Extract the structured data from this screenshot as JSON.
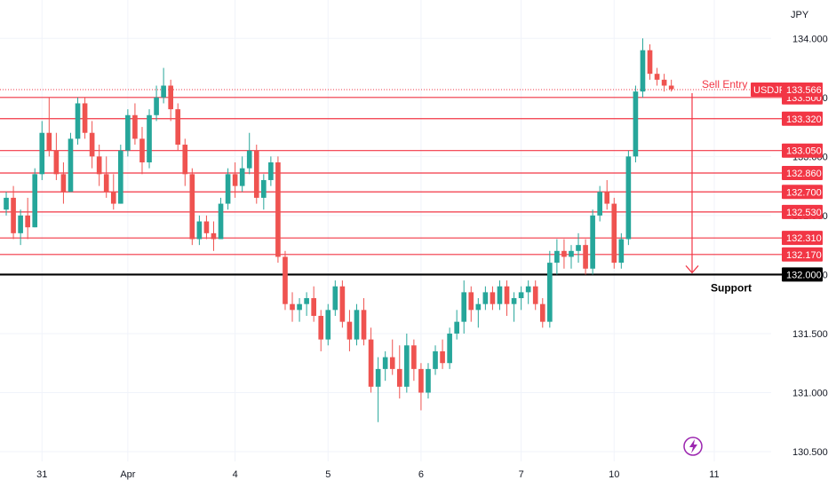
{
  "chart_data": {
    "type": "candlestick",
    "currency_label": "JPY",
    "symbol": "USDJPY",
    "current_price": "133.566",
    "y_range": [
      130.38,
      134.25
    ],
    "y_ticks": [
      "134.000",
      "133.500",
      "133.000",
      "132.500",
      "132.000",
      "131.500",
      "131.000",
      "130.500"
    ],
    "x_ticks": [
      {
        "label": "31",
        "bar": 5
      },
      {
        "label": "Apr",
        "bar": 17
      },
      {
        "label": "4",
        "bar": 32
      },
      {
        "label": "5",
        "bar": 45
      },
      {
        "label": "6",
        "bar": 58
      },
      {
        "label": "7",
        "bar": 72
      },
      {
        "label": "10",
        "bar": 85
      },
      {
        "label": "11",
        "bar": 99
      }
    ],
    "level_labels": [
      "133.500",
      "133.320",
      "133.050",
      "132.860",
      "132.700",
      "132.530",
      "132.310",
      "132.170"
    ],
    "levels": [
      133.5,
      133.32,
      133.05,
      132.86,
      132.7,
      132.53,
      132.31,
      132.17
    ],
    "support": {
      "label": "132.000",
      "value": 132.0,
      "text": "Support"
    },
    "sell_entry": {
      "text": "Sell Entry",
      "value": 133.566
    },
    "target": 132.0,
    "colors": {
      "up": "#26a69a",
      "down": "#ef5350",
      "level": "#f23645",
      "support": "#000000",
      "price_line": "#f23645",
      "text": "#131722"
    },
    "candles": [
      [
        132.55,
        132.7,
        132.5,
        132.65
      ],
      [
        132.65,
        132.75,
        132.3,
        132.35
      ],
      [
        132.35,
        132.55,
        132.25,
        132.5
      ],
      [
        132.5,
        132.65,
        132.3,
        132.4
      ],
      [
        132.4,
        132.9,
        132.4,
        132.85
      ],
      [
        132.85,
        133.3,
        132.8,
        133.2
      ],
      [
        133.2,
        133.5,
        133.0,
        133.05
      ],
      [
        133.05,
        133.2,
        132.8,
        132.85
      ],
      [
        132.85,
        132.95,
        132.6,
        132.7
      ],
      [
        132.7,
        133.2,
        132.7,
        133.15
      ],
      [
        133.15,
        133.5,
        133.1,
        133.45
      ],
      [
        133.45,
        133.5,
        133.15,
        133.2
      ],
      [
        133.2,
        133.3,
        132.9,
        133.0
      ],
      [
        133.0,
        133.1,
        132.75,
        132.85
      ],
      [
        132.85,
        133.0,
        132.65,
        132.7
      ],
      [
        132.7,
        132.85,
        132.55,
        132.6
      ],
      [
        132.6,
        133.1,
        132.6,
        133.05
      ],
      [
        133.05,
        133.4,
        133.0,
        133.35
      ],
      [
        133.35,
        133.45,
        133.1,
        133.15
      ],
      [
        133.15,
        133.25,
        132.85,
        132.95
      ],
      [
        132.95,
        133.4,
        132.9,
        133.35
      ],
      [
        133.35,
        133.6,
        133.3,
        133.5
      ],
      [
        133.5,
        133.75,
        133.45,
        133.6
      ],
      [
        133.6,
        133.65,
        133.3,
        133.4
      ],
      [
        133.4,
        133.45,
        133.05,
        133.1
      ],
      [
        133.1,
        133.15,
        132.75,
        132.85
      ],
      [
        132.85,
        132.9,
        132.25,
        132.3
      ],
      [
        132.3,
        132.5,
        132.25,
        132.45
      ],
      [
        132.45,
        132.5,
        132.3,
        132.35
      ],
      [
        132.35,
        132.45,
        132.2,
        132.3
      ],
      [
        132.3,
        132.65,
        132.3,
        132.6
      ],
      [
        132.6,
        132.9,
        132.55,
        132.85
      ],
      [
        132.85,
        132.95,
        132.65,
        132.75
      ],
      [
        132.75,
        133.0,
        132.7,
        132.9
      ],
      [
        132.9,
        133.2,
        132.85,
        133.05
      ],
      [
        133.05,
        133.1,
        132.6,
        132.65
      ],
      [
        132.65,
        132.85,
        132.55,
        132.8
      ],
      [
        132.8,
        133.0,
        132.75,
        132.95
      ],
      [
        132.95,
        133.0,
        132.1,
        132.15
      ],
      [
        132.15,
        132.2,
        131.7,
        131.75
      ],
      [
        131.75,
        131.85,
        131.6,
        131.7
      ],
      [
        131.7,
        131.8,
        131.6,
        131.75
      ],
      [
        131.75,
        131.85,
        131.65,
        131.8
      ],
      [
        131.8,
        131.9,
        131.6,
        131.65
      ],
      [
        131.65,
        131.7,
        131.35,
        131.45
      ],
      [
        131.45,
        131.75,
        131.4,
        131.7
      ],
      [
        131.7,
        131.95,
        131.65,
        131.9
      ],
      [
        131.9,
        131.95,
        131.55,
        131.6
      ],
      [
        131.6,
        131.7,
        131.35,
        131.45
      ],
      [
        131.45,
        131.75,
        131.4,
        131.7
      ],
      [
        131.7,
        131.8,
        131.4,
        131.45
      ],
      [
        131.45,
        131.55,
        131.0,
        131.05
      ],
      [
        131.05,
        131.3,
        130.75,
        131.2
      ],
      [
        131.2,
        131.35,
        131.1,
        131.3
      ],
      [
        131.3,
        131.45,
        131.15,
        131.2
      ],
      [
        131.2,
        131.4,
        130.95,
        131.05
      ],
      [
        131.05,
        131.5,
        131.0,
        131.4
      ],
      [
        131.4,
        131.45,
        131.1,
        131.2
      ],
      [
        131.2,
        131.25,
        130.85,
        131.0
      ],
      [
        131.0,
        131.25,
        130.95,
        131.2
      ],
      [
        131.2,
        131.4,
        131.15,
        131.35
      ],
      [
        131.35,
        131.45,
        131.2,
        131.25
      ],
      [
        131.25,
        131.55,
        131.2,
        131.5
      ],
      [
        131.5,
        131.7,
        131.45,
        131.6
      ],
      [
        131.6,
        131.95,
        131.5,
        131.85
      ],
      [
        131.85,
        131.9,
        131.6,
        131.7
      ],
      [
        131.7,
        131.8,
        131.55,
        131.75
      ],
      [
        131.75,
        131.9,
        131.7,
        131.85
      ],
      [
        131.85,
        131.9,
        131.7,
        131.75
      ],
      [
        131.75,
        131.95,
        131.7,
        131.9
      ],
      [
        131.9,
        131.95,
        131.65,
        131.75
      ],
      [
        131.75,
        131.85,
        131.6,
        131.8
      ],
      [
        131.8,
        131.9,
        131.7,
        131.85
      ],
      [
        131.85,
        131.95,
        131.75,
        131.9
      ],
      [
        131.9,
        131.95,
        131.7,
        131.75
      ],
      [
        131.75,
        131.8,
        131.55,
        131.6
      ],
      [
        131.6,
        132.2,
        131.55,
        132.1
      ],
      [
        132.1,
        132.3,
        132.0,
        132.2
      ],
      [
        132.2,
        132.3,
        132.05,
        132.15
      ],
      [
        132.15,
        132.25,
        132.05,
        132.2
      ],
      [
        132.2,
        132.35,
        132.1,
        132.25
      ],
      [
        132.25,
        132.3,
        132.0,
        132.05
      ],
      [
        132.05,
        132.55,
        132.0,
        132.5
      ],
      [
        132.5,
        132.75,
        132.45,
        132.7
      ],
      [
        132.7,
        132.8,
        132.55,
        132.6
      ],
      [
        132.6,
        132.65,
        132.05,
        132.1
      ],
      [
        132.1,
        132.35,
        132.05,
        132.3
      ],
      [
        132.3,
        133.05,
        132.25,
        133.0
      ],
      [
        133.0,
        133.6,
        132.95,
        133.55
      ],
      [
        133.55,
        134.0,
        133.5,
        133.9
      ],
      [
        133.9,
        133.95,
        133.65,
        133.7
      ],
      [
        133.7,
        133.75,
        133.6,
        133.65
      ],
      [
        133.65,
        133.7,
        133.55,
        133.6
      ],
      [
        133.6,
        133.65,
        133.55,
        133.57
      ]
    ]
  },
  "footer": {
    "indicator_icon": "lightning-icon"
  }
}
